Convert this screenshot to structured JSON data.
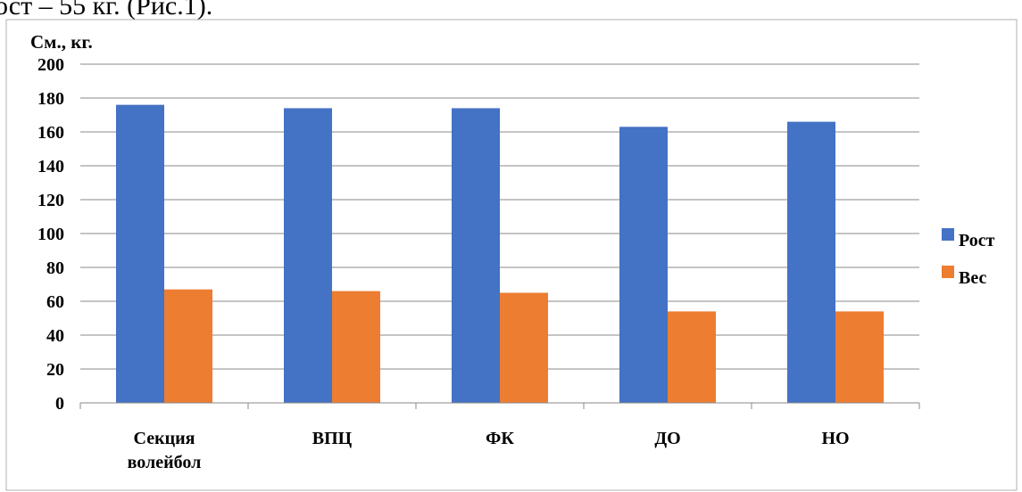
{
  "header_fragment": "ост – 55 кг. (Рис.1).",
  "chart_data": {
    "type": "bar",
    "ylabel": "См., кг.",
    "xlabel": "",
    "ylim": [
      0,
      200
    ],
    "yticks": [
      0,
      20,
      40,
      60,
      80,
      100,
      120,
      140,
      160,
      180,
      200
    ],
    "categories": [
      "Секция волейбол",
      "ВПЦ",
      "ФК",
      "ДО",
      "НО"
    ],
    "category_lines": [
      [
        "Секция",
        "волейбол"
      ],
      [
        "ВПЦ"
      ],
      [
        "ФК"
      ],
      [
        "ДО"
      ],
      [
        "НО"
      ]
    ],
    "series": [
      {
        "name": "Рост",
        "color": "#4472c4",
        "values": [
          176,
          174,
          174,
          163,
          166
        ]
      },
      {
        "name": "Вес",
        "color": "#ed7d31",
        "values": [
          67,
          66,
          65,
          54,
          54
        ]
      }
    ],
    "grid": true,
    "legend_position": "right"
  }
}
